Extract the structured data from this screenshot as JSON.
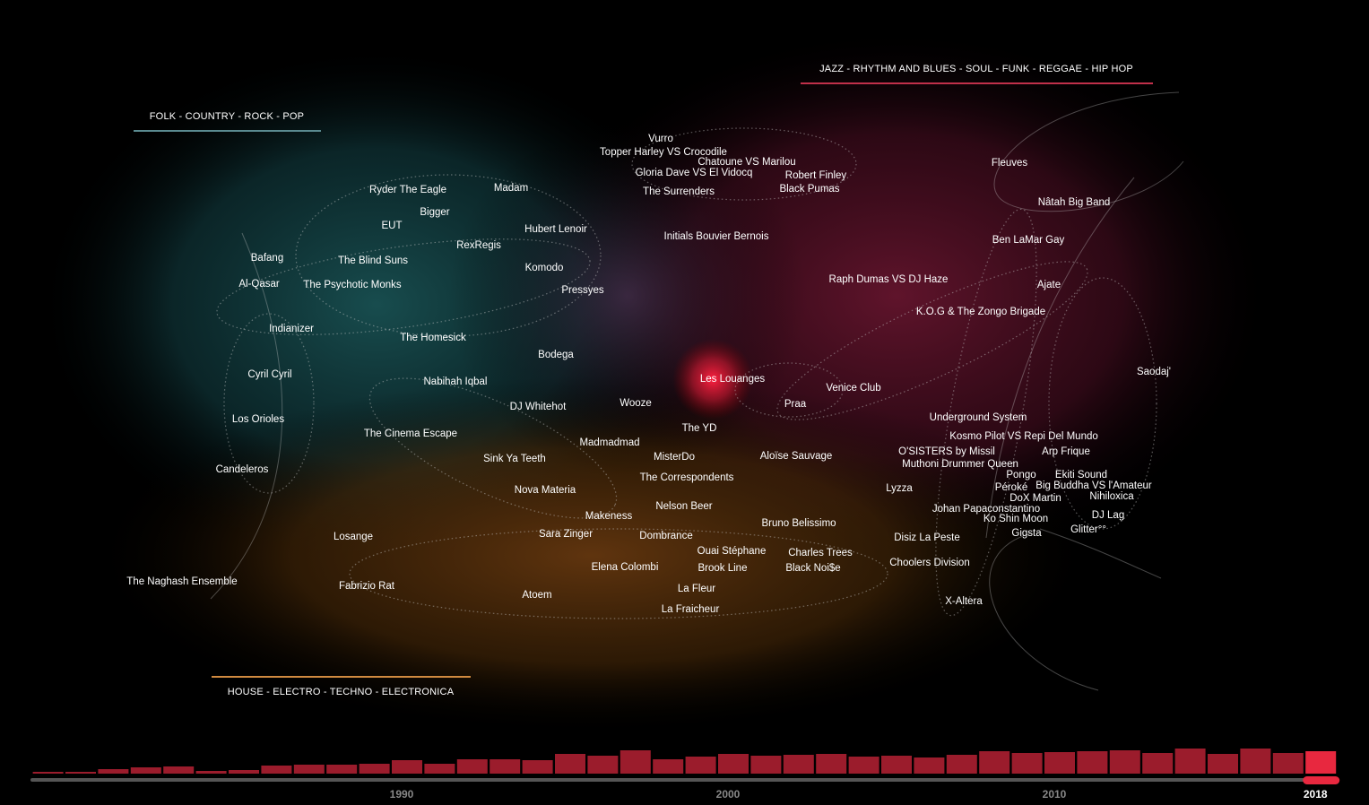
{
  "genres": {
    "folk": "FOLK - COUNTRY - ROCK - POP",
    "jazz": "JAZZ - RHYTHM AND BLUES - SOUL - FUNK - REGGAE - HIP HOP",
    "house": "HOUSE - ELECTRO - TECHNO - ELECTRONICA"
  },
  "artists": [
    "Vurro",
    "Topper Harley VS Crocodile",
    "Chatoune VS Marilou",
    "Gloria Dave VS El Vidocq",
    "Robert Finley",
    "Black Pumas",
    "The Surrenders",
    "Ryder The Eagle",
    "Madam",
    "Bigger",
    "EUT",
    "Hubert Lenoir",
    "Initials Bouvier Bernois",
    "RexRegis",
    "Bafang",
    "The Blind Suns",
    "Komodo",
    "Al-Qasar",
    "The Psychotic Monks",
    "Pressyes",
    "Indianizer",
    "The Homesick",
    "Bodega",
    "Cyril Cyril",
    "Nabihah Iqbal",
    "Les Louanges",
    "Venice Club",
    "Wooze",
    "Praa",
    "DJ Whitehot",
    "Los Orioles",
    "The YD",
    "The Cinema Escape",
    "Madmadmad",
    "MisterDo",
    "Aloïse Sauvage",
    "Sink Ya Teeth",
    "Candeleros",
    "The Correspondents",
    "Nova Materia",
    "Nelson Beer",
    "Makeness",
    "Bruno Belissimo",
    "Losange",
    "Sara Zinger",
    "Dombrance",
    "Ouai Stéphane",
    "Charles Trees",
    "Elena Colombi",
    "Brook Line",
    "Black Noi$e",
    "The Naghash Ensemble",
    "Fabrizio Rat",
    "Atoem",
    "La Fleur",
    "La Fraicheur",
    "Fleuves",
    "Nâtah Big Band",
    "Ben LaMar Gay",
    "Raph Dumas VS DJ Haze",
    "Ajate",
    "K.O.G & The Zongo Brigade",
    "Saodaj'",
    "Underground System",
    "Kosmo Pilot VS Repi Del Mundo",
    "O'SISTERS by Missil",
    "Arp Frique",
    "Muthoni Drummer Queen",
    "Pongo",
    "Ekiti Sound",
    "Lyzza",
    "Péroké",
    "Big Buddha VS l'Amateur",
    "DoX Martin",
    "Nihiloxica",
    "Johan Papaconstantino",
    "Ko Shin Moon",
    "DJ Lag",
    "Gigsta",
    "Glitter°°",
    "Disiz La Peste",
    "Choolers Division",
    "X-Altera"
  ],
  "timeline": {
    "type": "bar",
    "x": [
      1979,
      1980,
      1981,
      1982,
      1983,
      1984,
      1985,
      1986,
      1987,
      1988,
      1989,
      1990,
      1991,
      1992,
      1993,
      1994,
      1995,
      1996,
      1997,
      1998,
      1999,
      2000,
      2001,
      2002,
      2003,
      2004,
      2005,
      2006,
      2007,
      2008,
      2009,
      2010,
      2011,
      2012,
      2013,
      2014,
      2015,
      2016,
      2017,
      2018
    ],
    "values": [
      2,
      2,
      5,
      7,
      8,
      3,
      4,
      9,
      10,
      10,
      11,
      15,
      11,
      16,
      16,
      15,
      22,
      20,
      26,
      16,
      19,
      22,
      20,
      21,
      22,
      19,
      20,
      18,
      21,
      25,
      23,
      24,
      25,
      26,
      23,
      28,
      22,
      28,
      23,
      25
    ],
    "xticks": [
      1990,
      2000,
      2010,
      2018
    ],
    "selected": 2018,
    "color": "#9b1c2c",
    "selected_color": "#e8283f"
  }
}
